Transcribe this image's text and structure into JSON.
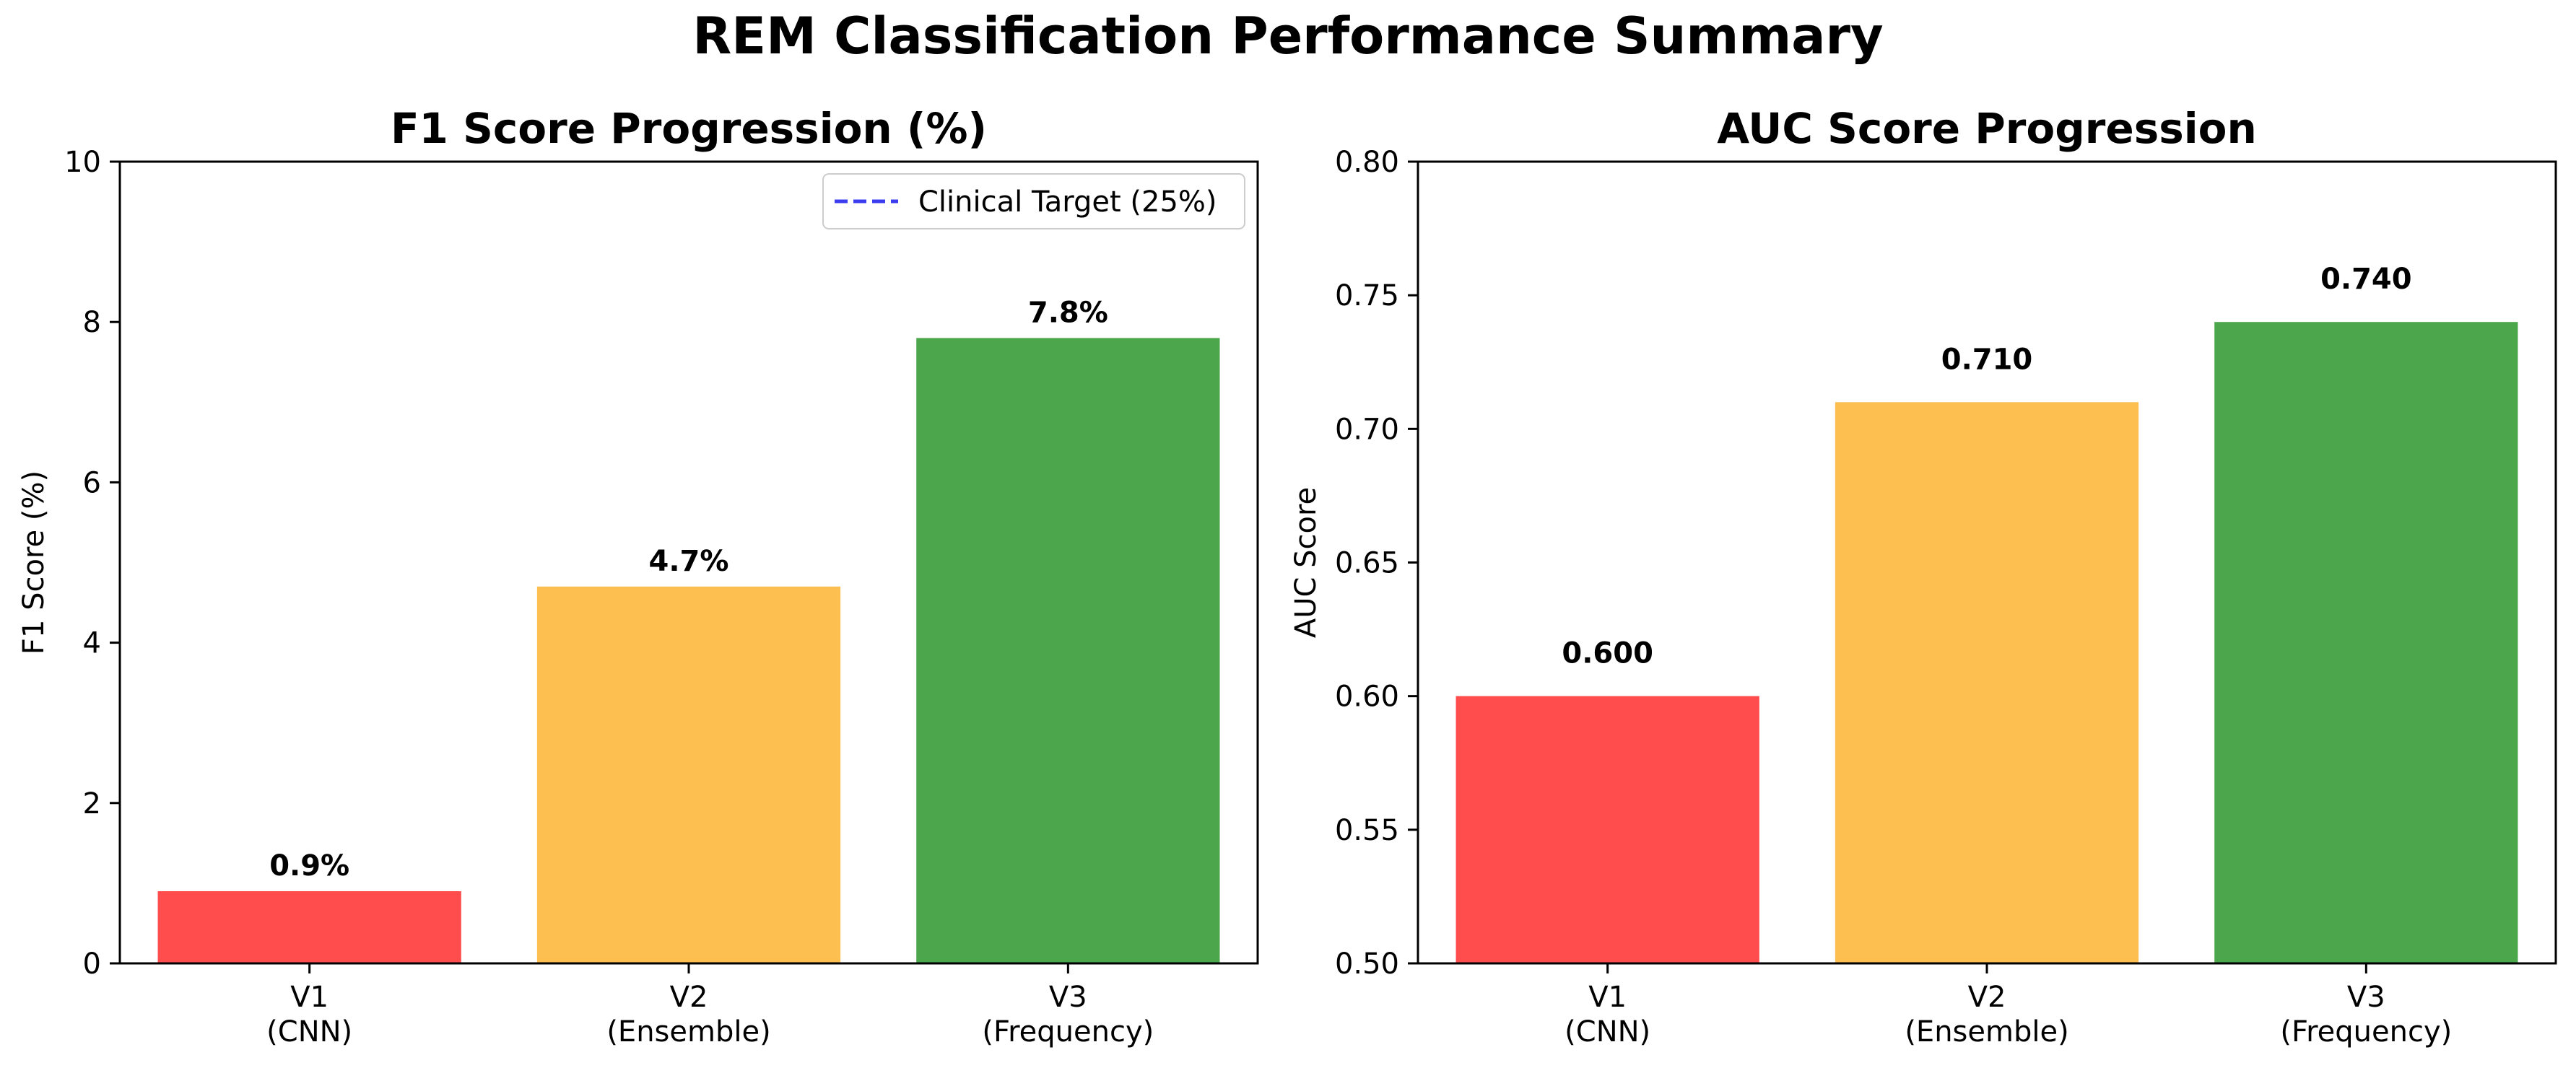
{
  "figure": {
    "title": "REM Classification Performance Summary"
  },
  "chart_data": [
    {
      "type": "bar",
      "title": "F1 Score Progression (%)",
      "xlabel": "",
      "ylabel": "F1 Score (%)",
      "categories": [
        "V1\n(CNN)",
        "V2\n(Ensemble)",
        "V3\n(Frequency)"
      ],
      "values": [
        0.9,
        4.7,
        7.8
      ],
      "data_labels": [
        "0.9%",
        "4.7%",
        "7.8%"
      ],
      "colors": [
        "#ff4d4d",
        "#fdbf4f",
        "#4ca64c"
      ],
      "ylim": [
        0,
        10
      ],
      "yticks": [
        0,
        2,
        4,
        6,
        8,
        10
      ],
      "ytick_labels": [
        "0",
        "2",
        "4",
        "6",
        "8",
        "10"
      ],
      "grid": false,
      "reference_line": {
        "value": 25,
        "label": "Clinical Target (25%)",
        "color": "#3b3bf0",
        "style": "dashed"
      },
      "legend": {
        "position": "upper-right",
        "entries": [
          "Clinical Target (25%)"
        ]
      }
    },
    {
      "type": "bar",
      "title": "AUC Score Progression",
      "xlabel": "",
      "ylabel": "AUC Score",
      "categories": [
        "V1\n(CNN)",
        "V2\n(Ensemble)",
        "V3\n(Frequency)"
      ],
      "values": [
        0.6,
        0.71,
        0.74
      ],
      "data_labels": [
        "0.600",
        "0.710",
        "0.740"
      ],
      "colors": [
        "#ff4d4d",
        "#fdbf4f",
        "#4ca64c"
      ],
      "ylim": [
        0.5,
        0.8
      ],
      "yticks": [
        0.5,
        0.55,
        0.6,
        0.65,
        0.7,
        0.75,
        0.8
      ],
      "ytick_labels": [
        "0.50",
        "0.55",
        "0.60",
        "0.65",
        "0.70",
        "0.75",
        "0.80"
      ],
      "grid": false
    }
  ]
}
